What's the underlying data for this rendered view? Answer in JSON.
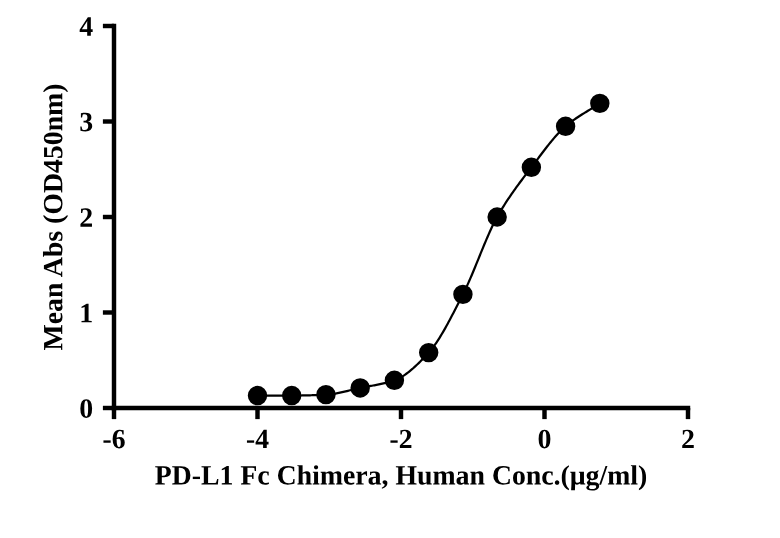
{
  "chart_data": {
    "type": "line",
    "xlabel": "PD-L1 Fc Chimera, Human Conc.(μg/ml)",
    "ylabel": "Mean Abs (OD450nm)",
    "x": [
      -4,
      -3.523,
      -3.046,
      -2.569,
      -2.092,
      -1.614,
      -1.137,
      -0.66,
      -0.183,
      0.294,
      0.771
    ],
    "series": [
      {
        "color": "#000000",
        "values": [
          0.13,
          0.13,
          0.14,
          0.21,
          0.29,
          0.58,
          1.19,
          2.0,
          2.52,
          2.95,
          3.19
        ]
      }
    ],
    "xlim": [
      -6,
      2
    ],
    "xticks": [
      -6,
      -4,
      -2,
      0,
      2
    ],
    "ylim": [
      0,
      4
    ],
    "yticks": [
      0,
      1,
      2,
      3,
      4
    ],
    "marker": "circle",
    "line_style": "solid",
    "grid": false,
    "legend": false
  }
}
